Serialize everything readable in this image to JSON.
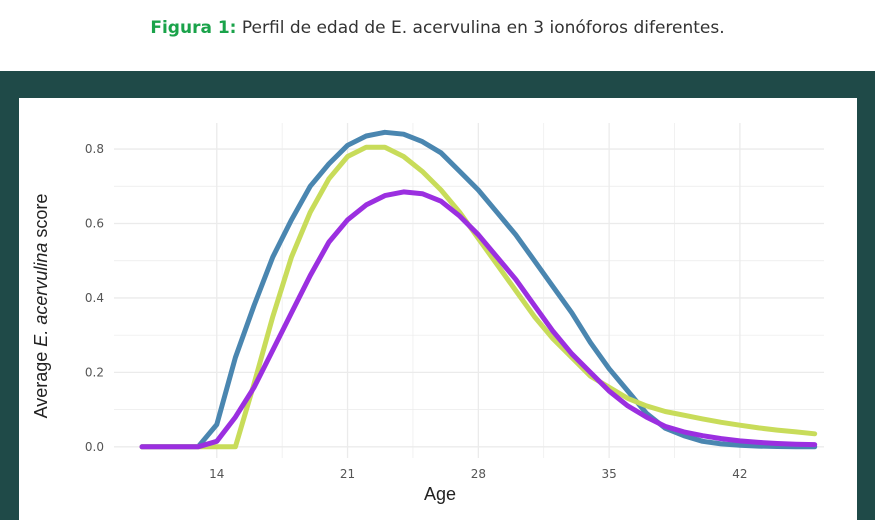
{
  "caption": {
    "label": "Figura 1:",
    "text": " Perfil de edad de E. acervulina en 3 ionóforos diferentes."
  },
  "colors": {
    "frame": "#1f4a48",
    "caption_label": "#1aa34a",
    "grid": "#ebebeb"
  },
  "chart_data": {
    "type": "line",
    "xlabel": "Age",
    "ylabel_parts": [
      "Average ",
      "E. acervulina",
      " score"
    ],
    "xlim": [
      8.5,
      46.5
    ],
    "ylim": [
      -0.03,
      0.87
    ],
    "xticks": [
      14,
      21,
      28,
      35,
      42
    ],
    "yticks": [
      0.0,
      0.2,
      0.4,
      0.6,
      0.8
    ],
    "ytick_labels": [
      "0.0",
      "0.2",
      "0.4",
      "0.6",
      "0.8"
    ],
    "grid": true,
    "legend": "none",
    "series": [
      {
        "color": "#4a86b0",
        "x": [
          10,
          11,
          12,
          13,
          14,
          15,
          16,
          17,
          18,
          19,
          20,
          21,
          22,
          23,
          24,
          25,
          26,
          27,
          28,
          29,
          30,
          31,
          32,
          33,
          34,
          35,
          36,
          37,
          38,
          39,
          40,
          41,
          42,
          43,
          44,
          45,
          46
        ],
        "y": [
          0,
          0,
          0,
          0,
          0.06,
          0.24,
          0.38,
          0.51,
          0.61,
          0.7,
          0.76,
          0.81,
          0.835,
          0.845,
          0.84,
          0.82,
          0.79,
          0.74,
          0.69,
          0.63,
          0.57,
          0.5,
          0.43,
          0.36,
          0.28,
          0.21,
          0.15,
          0.09,
          0.05,
          0.03,
          0.015,
          0.008,
          0.004,
          0.002,
          0.001,
          0,
          0
        ]
      },
      {
        "color": "#c8dc5a",
        "x": [
          10,
          11,
          12,
          13,
          14,
          15,
          16,
          17,
          18,
          19,
          20,
          21,
          22,
          23,
          24,
          25,
          26,
          27,
          28,
          29,
          30,
          31,
          32,
          33,
          34,
          35,
          36,
          37,
          38,
          39,
          40,
          41,
          42,
          43,
          44,
          45,
          46
        ],
        "y": [
          0,
          0,
          0,
          0,
          0,
          0,
          0.17,
          0.35,
          0.51,
          0.63,
          0.72,
          0.78,
          0.805,
          0.805,
          0.78,
          0.74,
          0.69,
          0.63,
          0.56,
          0.49,
          0.42,
          0.35,
          0.29,
          0.24,
          0.19,
          0.16,
          0.13,
          0.11,
          0.095,
          0.085,
          0.075,
          0.066,
          0.058,
          0.051,
          0.045,
          0.04,
          0.035
        ]
      },
      {
        "color": "#9b2fe0",
        "x": [
          10,
          11,
          12,
          13,
          14,
          15,
          16,
          17,
          18,
          19,
          20,
          21,
          22,
          23,
          24,
          25,
          26,
          27,
          28,
          29,
          30,
          31,
          32,
          33,
          34,
          35,
          36,
          37,
          38,
          39,
          40,
          41,
          42,
          43,
          44,
          45,
          46
        ],
        "y": [
          0,
          0,
          0,
          0,
          0.015,
          0.08,
          0.16,
          0.26,
          0.36,
          0.46,
          0.55,
          0.61,
          0.65,
          0.675,
          0.685,
          0.68,
          0.66,
          0.62,
          0.57,
          0.51,
          0.45,
          0.38,
          0.31,
          0.25,
          0.2,
          0.15,
          0.11,
          0.08,
          0.055,
          0.04,
          0.03,
          0.022,
          0.016,
          0.012,
          0.009,
          0.007,
          0.006
        ]
      }
    ]
  }
}
